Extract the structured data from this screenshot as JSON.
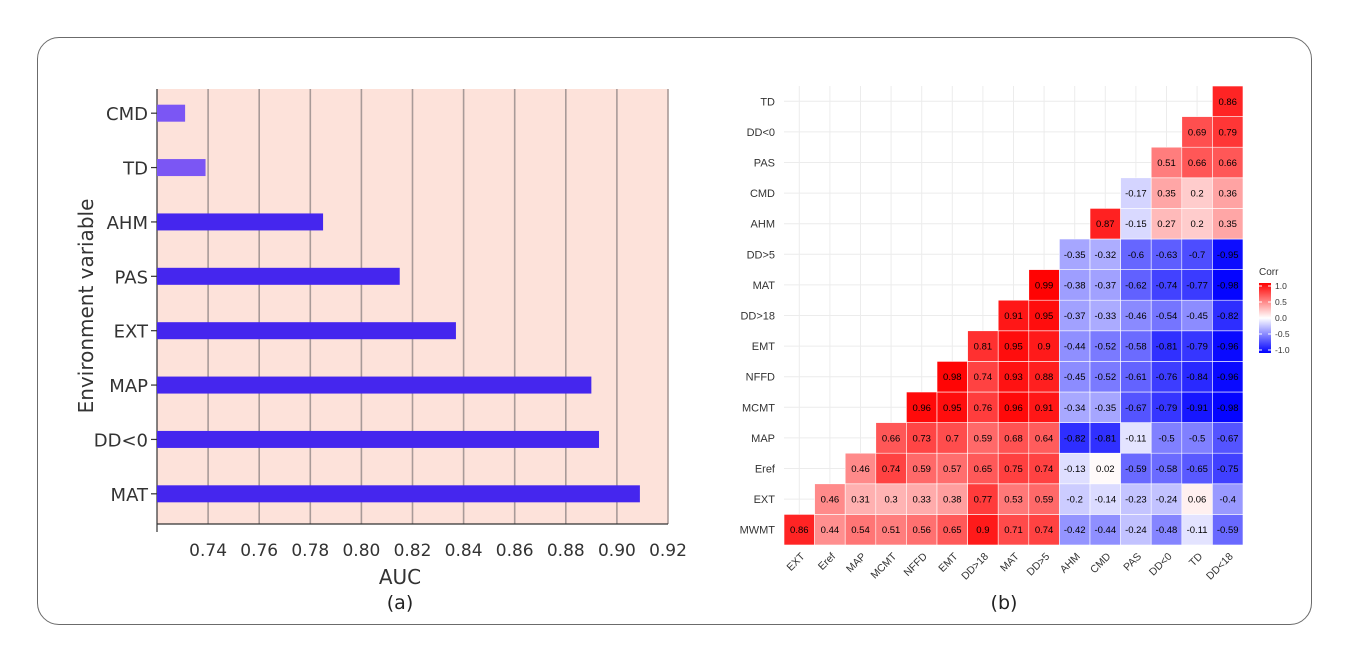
{
  "chart_data": [
    {
      "type": "bar",
      "orientation": "horizontal",
      "caption": "(a)",
      "xlabel": "AUC",
      "ylabel": "Environment variable",
      "xlim": [
        0.72,
        0.92
      ],
      "xticks": [
        "0.74",
        "0.76",
        "0.78",
        "0.80",
        "0.82",
        "0.84",
        "0.86",
        "0.88",
        "0.90",
        "0.92"
      ],
      "grid": true,
      "categories": [
        "CMD",
        "TD",
        "AHM",
        "PAS",
        "EXT",
        "MAP",
        "DD<0",
        "MAT"
      ],
      "values": [
        0.731,
        0.739,
        0.785,
        0.815,
        0.837,
        0.89,
        0.893,
        0.909
      ],
      "bar_colors": [
        "#7b56f4",
        "#7b56f4",
        "#4526ee",
        "#4526ee",
        "#4526ee",
        "#4526ee",
        "#4526ee",
        "#4526ee"
      ],
      "panel_color": "#fde2da"
    },
    {
      "type": "heatmap",
      "caption": "(b)",
      "legend_title": "Corr",
      "legend_ticks": [
        "1.0",
        "0.5",
        "0.0",
        "-0.5",
        "-1.0"
      ],
      "legend_placement": "right",
      "colors": {
        "high": "#ff0000",
        "mid": "#ffffff",
        "low": "#0000ff"
      },
      "x_labels": [
        "EXT",
        "Eref",
        "MAP",
        "MCMT",
        "NFFD",
        "EMT",
        "DD>18",
        "MAT",
        "DD>5",
        "AHM",
        "CMD",
        "PAS",
        "DD<0",
        "TD",
        "DD<18"
      ],
      "y_labels": [
        "MWMT",
        "EXT",
        "Eref",
        "MAP",
        "MCMT",
        "NFFD",
        "EMT",
        "DD>18",
        "MAT",
        "DD>5",
        "AHM",
        "CMD",
        "PAS",
        "DD<0",
        "TD"
      ],
      "rows": [
        [
          "0.86",
          "0.44",
          "0.54",
          "0.51",
          "0.56",
          "0.65",
          "0.9",
          "0.71",
          "0.74",
          "-0.42",
          "-0.44",
          "-0.24",
          "-0.48",
          "-0.11",
          "-0.59"
        ],
        [
          "0.46",
          "0.31",
          "0.3",
          "0.33",
          "0.38",
          "0.77",
          "0.53",
          "0.59",
          "-0.2",
          "-0.14",
          "-0.23",
          "-0.24",
          "0.06",
          "-0.4"
        ],
        [
          "0.46",
          "0.74",
          "0.59",
          "0.57",
          "0.65",
          "0.75",
          "0.74",
          "-0.13",
          "0.02",
          "-0.59",
          "-0.58",
          "-0.65",
          "-0.75"
        ],
        [
          "0.66",
          "0.73",
          "0.7",
          "0.59",
          "0.68",
          "0.64",
          "-0.82",
          "-0.81",
          "-0.11",
          "-0.5",
          "-0.5",
          "-0.67"
        ],
        [
          "0.96",
          "0.95",
          "0.76",
          "0.96",
          "0.91",
          "-0.34",
          "-0.35",
          "-0.67",
          "-0.79",
          "-0.91",
          "-0.98"
        ],
        [
          "0.98",
          "0.74",
          "0.93",
          "0.88",
          "-0.45",
          "-0.52",
          "-0.61",
          "-0.76",
          "-0.84",
          "-0.96"
        ],
        [
          "0.81",
          "0.95",
          "0.9",
          "-0.44",
          "-0.52",
          "-0.58",
          "-0.81",
          "-0.79",
          "-0.96"
        ],
        [
          "0.91",
          "0.95",
          "-0.37",
          "-0.33",
          "-0.46",
          "-0.54",
          "-0.45",
          "-0.82"
        ],
        [
          "0.99",
          "-0.38",
          "-0.37",
          "-0.62",
          "-0.74",
          "-0.77",
          "-0.98"
        ],
        [
          "-0.35",
          "-0.32",
          "-0.6",
          "-0.63",
          "-0.7",
          "-0.95"
        ],
        [
          "0.87",
          "-0.15",
          "0.27",
          "0.2",
          "0.35"
        ],
        [
          "-0.17",
          "0.35",
          "0.2",
          "0.36"
        ],
        [
          "0.51",
          "0.66",
          "0.66"
        ],
        [
          "0.69",
          "0.79"
        ],
        [
          "0.86"
        ]
      ]
    }
  ]
}
